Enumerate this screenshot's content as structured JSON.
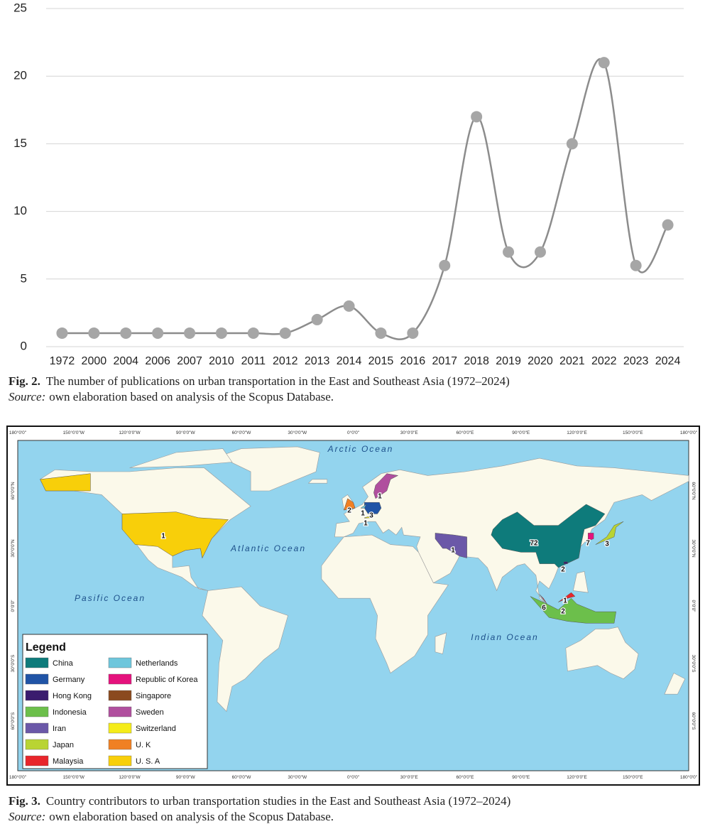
{
  "chart_data": {
    "type": "line",
    "categories": [
      "1972",
      "2000",
      "2004",
      "2006",
      "2007",
      "2010",
      "2011",
      "2012",
      "2013",
      "2014",
      "2015",
      "2016",
      "2017",
      "2018",
      "2019",
      "2020",
      "2021",
      "2022",
      "2023",
      "2024"
    ],
    "series": [
      {
        "color": "#a6a6a6",
        "values": [
          1,
          1,
          1,
          1,
          1,
          1,
          1,
          1,
          2,
          3,
          1,
          1,
          6,
          17,
          7,
          7,
          15,
          21,
          6,
          9
        ]
      }
    ],
    "ylim": [
      0,
      25
    ],
    "yticks": [
      0,
      5,
      10,
      15,
      20,
      25
    ],
    "grid": true
  },
  "figure2": {
    "label": "Fig. 2.",
    "caption": "The number of publications on urban transportation in the East and Southeast Asia (1972–2024)",
    "source_label": "Source:",
    "source": "own elaboration based on analysis of the Scopus Database."
  },
  "map": {
    "oceans": [
      "Arctic Ocean",
      "Atlantic Ocean",
      "Pasific Ocean",
      "Indian Ocean"
    ],
    "longitude_labels": [
      "180°0'0\"",
      "150°0'0\"W",
      "120°0'0\"W",
      "90°0'0\"W",
      "60°0'0\"W",
      "30°0'0\"W",
      "0°0'0\"",
      "30°0'0\"E",
      "60°0'0\"E",
      "90°0'0\"E",
      "120°0'0\"E",
      "150°0'0\"E",
      "180°0'0\""
    ],
    "latitude_labels": [
      "60°0'0\"N",
      "30°0'0\"N",
      "0°0'0\"",
      "30°0'0\"S",
      "60°0'0\"S"
    ],
    "counts": [
      1,
      2,
      1,
      3,
      1,
      1,
      1,
      72,
      2,
      7,
      3,
      6,
      1,
      2
    ],
    "legend": {
      "title": "Legend",
      "entries": [
        {
          "name": "China",
          "color": "#0e7b7b"
        },
        {
          "name": "Germany",
          "color": "#2054a6"
        },
        {
          "name": "Hong Kong",
          "color": "#3a1c6e"
        },
        {
          "name": "Indonesia",
          "color": "#6cbf4b"
        },
        {
          "name": "Iran",
          "color": "#6b58a8"
        },
        {
          "name": "Japan",
          "color": "#b9d433"
        },
        {
          "name": "Malaysia",
          "color": "#e8252b"
        },
        {
          "name": "Netherlands",
          "color": "#6ec6dc"
        },
        {
          "name": "Republic of Korea",
          "color": "#e5127d"
        },
        {
          "name": "Singapore",
          "color": "#8b4a1f"
        },
        {
          "name": "Sweden",
          "color": "#b04f9e"
        },
        {
          "name": "Switzerland",
          "color": "#f5ec1a"
        },
        {
          "name": "U. K",
          "color": "#f08023"
        },
        {
          "name": "U. S. A",
          "color": "#f8cf0a"
        }
      ]
    }
  },
  "figure3": {
    "label": "Fig. 3.",
    "caption": "Country contributors to urban transportation studies in the East and Southeast Asia (1972–2024)",
    "source_label": "Source:",
    "source": "own elaboration based on analysis of the Scopus Database."
  }
}
